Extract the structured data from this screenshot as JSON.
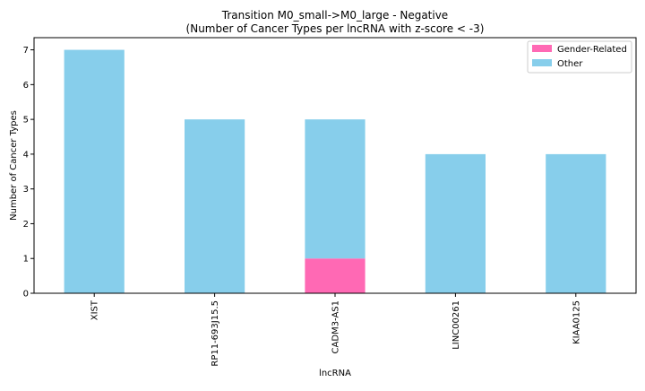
{
  "chart_data": {
    "type": "bar",
    "stacked": true,
    "title_line1": "Transition M0_small->M0_large - Negative",
    "title_line2": "(Number of Cancer Types per lncRNA with z-score < -3)",
    "xlabel": "lncRNA",
    "ylabel": "Number of Cancer Types",
    "categories": [
      "XIST",
      "RP11-693J15.5",
      "CADM3-AS1",
      "LINC00261",
      "KIAA0125"
    ],
    "series": [
      {
        "name": "Gender-Related",
        "color": "#ff69b4",
        "values": [
          0,
          0,
          1,
          0,
          0
        ]
      },
      {
        "name": "Other",
        "color": "#87ceeb",
        "values": [
          7,
          5,
          4,
          4,
          4
        ]
      }
    ],
    "ylim": [
      0,
      7.35
    ],
    "yticks": [
      0,
      1,
      2,
      3,
      4,
      5,
      6,
      7
    ],
    "legend_position": "top-right",
    "grid": false
  }
}
